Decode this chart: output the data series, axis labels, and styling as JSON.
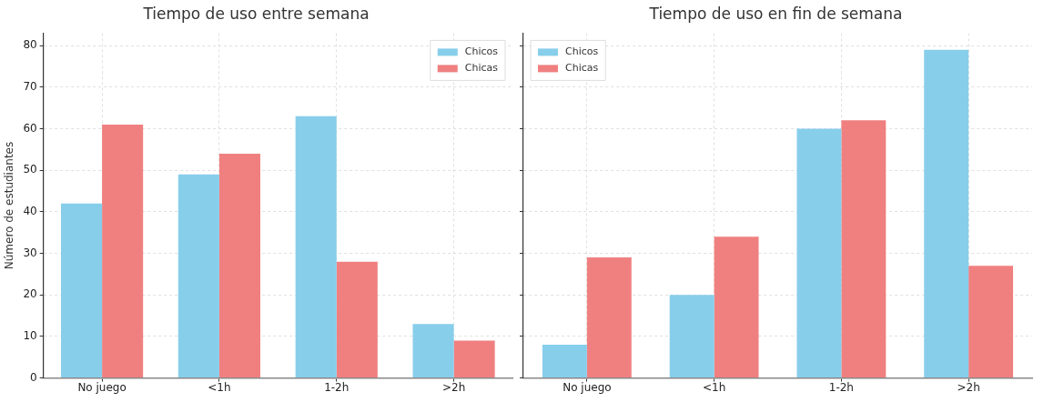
{
  "chart_data": [
    {
      "type": "bar",
      "title": "Tiempo de uso entre semana",
      "ylabel": "Número de estudiantes",
      "categories": [
        "No juego",
        "<1h",
        "1-2h",
        ">2h"
      ],
      "series": [
        {
          "name": "Chicos",
          "color": "#87ceeb",
          "values": [
            42,
            49,
            63,
            13
          ]
        },
        {
          "name": "Chicas",
          "color": "#f08080",
          "values": [
            61,
            54,
            28,
            9
          ]
        }
      ],
      "ylim": [
        0,
        83
      ],
      "yticks": [
        0,
        10,
        20,
        30,
        40,
        50,
        60,
        70,
        80
      ],
      "grid": true,
      "legend": "top right"
    },
    {
      "type": "bar",
      "title": "Tiempo de uso en fin de semana",
      "categories": [
        "No juego",
        "<1h",
        "1-2h",
        ">2h"
      ],
      "series": [
        {
          "name": "Chicos",
          "color": "#87ceeb",
          "values": [
            8,
            20,
            60,
            79
          ]
        },
        {
          "name": "Chicas",
          "color": "#f08080",
          "values": [
            29,
            34,
            62,
            27
          ]
        }
      ],
      "ylim": [
        0,
        83
      ],
      "yticks": [
        0,
        10,
        20,
        30,
        40,
        50,
        60,
        70,
        80
      ],
      "grid": true,
      "legend": "top left",
      "tick_labels": "x"
    }
  ]
}
